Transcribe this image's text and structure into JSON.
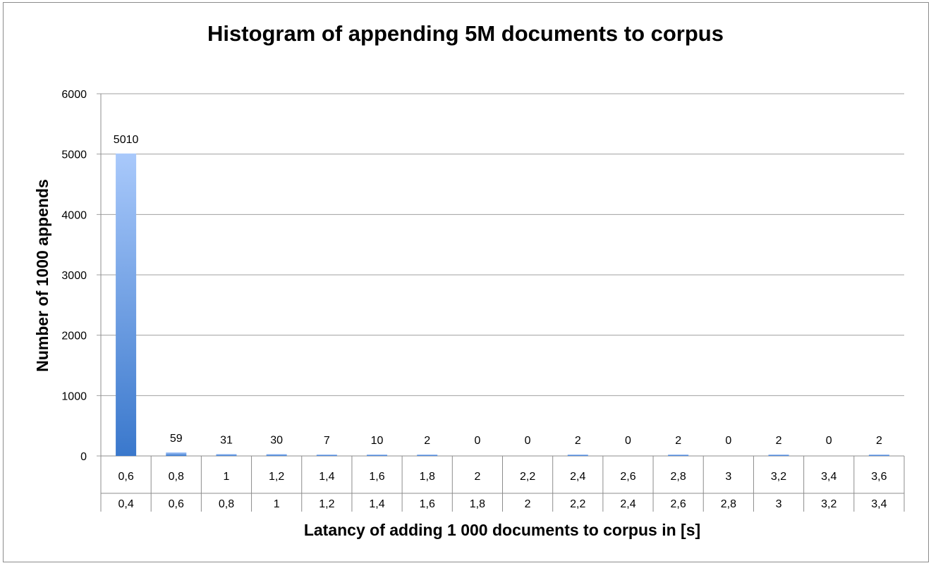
{
  "chart_data": {
    "type": "bar",
    "title": "Histogram of appending 5M documents to corpus",
    "xlabel": "Latancy of adding 1 000 documents to corpus in [s]",
    "ylabel": "Number of 1000 appends",
    "ylim": [
      0,
      6000
    ],
    "yticks": [
      "0",
      "1000",
      "2000",
      "3000",
      "4000",
      "5000",
      "6000"
    ],
    "categories_upper": [
      "0,6",
      "0,8",
      "1",
      "1,2",
      "1,4",
      "1,6",
      "1,8",
      "2",
      "2,2",
      "2,4",
      "2,6",
      "2,8",
      "3",
      "3,2",
      "3,4",
      "3,6"
    ],
    "categories_lower": [
      "0,4",
      "0,6",
      "0,8",
      "1",
      "1,2",
      "1,4",
      "1,6",
      "1,8",
      "2",
      "2,2",
      "2,4",
      "2,6",
      "2,8",
      "3",
      "3,2",
      "3,4"
    ],
    "values": [
      5010,
      59,
      31,
      30,
      7,
      10,
      2,
      0,
      0,
      2,
      0,
      2,
      0,
      2,
      0,
      2
    ],
    "value_labels": [
      "5010",
      "59",
      "31",
      "30",
      "7",
      "10",
      "2",
      "0",
      "0",
      "2",
      "0",
      "2",
      "0",
      "2",
      "0",
      "2"
    ],
    "grid": true,
    "legend": "none",
    "bar_color_top": "#a9c9fb",
    "bar_color_bottom": "#3a78cc"
  }
}
